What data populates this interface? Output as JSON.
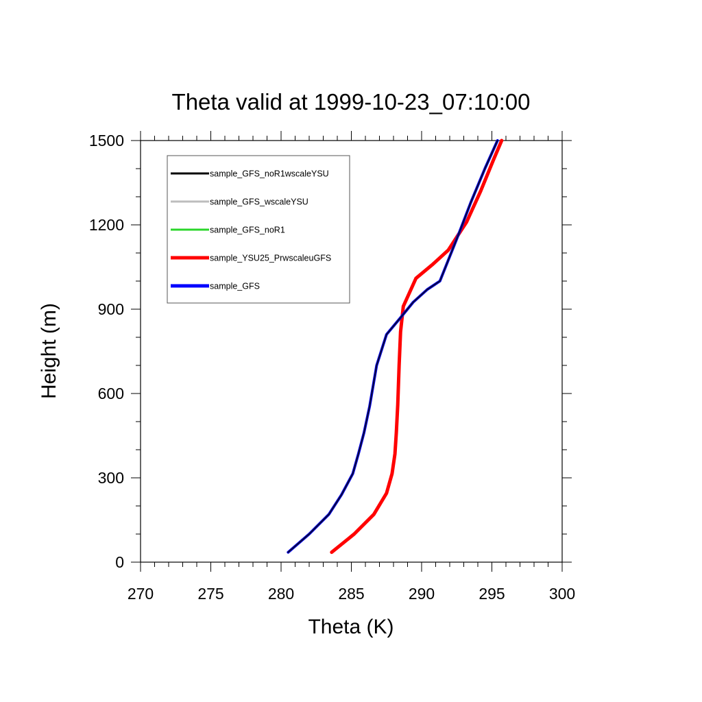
{
  "chart_data": {
    "type": "line",
    "title": "Theta valid at 1999-10-23_07:10:00",
    "xlabel": "Theta (K)",
    "ylabel": "Height (m)",
    "xlim": [
      270,
      300
    ],
    "ylim": [
      0,
      1500
    ],
    "x_ticks": [
      270,
      275,
      280,
      285,
      290,
      295,
      300
    ],
    "y_ticks": [
      0,
      300,
      600,
      900,
      1200,
      1500
    ],
    "x_tick_labels": [
      "270",
      "275",
      "280",
      "285",
      "290",
      "295",
      "300"
    ],
    "y_tick_labels": [
      "0",
      "300",
      "600",
      "900",
      "1200",
      "1500"
    ],
    "grid": false,
    "legend_position": "top-left",
    "series": [
      {
        "name": "sample_GFS_noR1wscaleYSU",
        "color": "#000000",
        "x": [
          280.5,
          282.0,
          283.4,
          284.3,
          285.1,
          285.5,
          285.9,
          286.3,
          286.8,
          287.5,
          288.5,
          289.4,
          290.4,
          291.3,
          292.5,
          293.5,
          294.5,
          295.4
        ],
        "y": [
          35,
          100,
          170,
          240,
          315,
          385,
          460,
          555,
          700,
          810,
          870,
          925,
          970,
          1000,
          1150,
          1280,
          1400,
          1500
        ]
      },
      {
        "name": "sample_GFS_wscaleYSU",
        "color": "#bdbdbd",
        "x": [
          280.5,
          282.0,
          283.4,
          284.3,
          285.1,
          285.5,
          285.9,
          286.3,
          286.8,
          287.5,
          288.5,
          289.4,
          290.4,
          291.3,
          292.5,
          293.5,
          294.5,
          295.4
        ],
        "y": [
          35,
          100,
          170,
          240,
          315,
          385,
          460,
          555,
          700,
          810,
          870,
          925,
          970,
          1000,
          1150,
          1280,
          1400,
          1500
        ]
      },
      {
        "name": "sample_GFS_noR1",
        "color": "#2bd62b",
        "x": [
          280.5,
          282.0,
          283.4,
          284.3,
          285.1,
          285.5,
          285.9,
          286.3,
          286.8,
          287.5,
          288.5,
          289.4,
          290.4,
          291.3,
          292.5,
          293.5,
          294.5,
          295.4
        ],
        "y": [
          35,
          100,
          170,
          240,
          315,
          385,
          460,
          555,
          700,
          810,
          870,
          925,
          970,
          1000,
          1150,
          1280,
          1400,
          1500
        ]
      },
      {
        "name": "sample_YSU25_PrwscaleuGFS",
        "color": "#ff0000",
        "x": [
          283.6,
          285.2,
          286.6,
          287.5,
          287.9,
          288.1,
          288.2,
          288.3,
          288.4,
          288.5,
          288.7,
          289.6,
          290.8,
          291.9,
          293.2,
          294.2,
          295.1,
          295.7
        ],
        "y": [
          35,
          100,
          170,
          245,
          315,
          385,
          460,
          560,
          700,
          820,
          910,
          1010,
          1060,
          1110,
          1210,
          1320,
          1430,
          1500
        ]
      },
      {
        "name": "sample_GFS",
        "color": "#0000ff",
        "x": [
          280.5,
          282.0,
          283.4,
          284.3,
          285.1,
          285.5,
          285.9,
          286.3,
          286.8,
          287.5,
          288.5,
          289.4,
          290.4,
          291.3,
          292.5,
          293.5,
          294.5,
          295.4
        ],
        "y": [
          35,
          100,
          170,
          240,
          315,
          385,
          460,
          555,
          700,
          810,
          870,
          925,
          970,
          1000,
          1150,
          1280,
          1400,
          1500
        ]
      }
    ]
  }
}
